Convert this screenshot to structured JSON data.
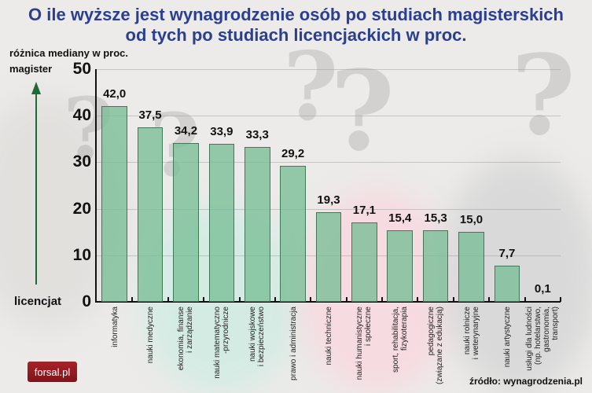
{
  "title_line1": "O ile wyższe jest wynagrodzenie osób po studiach magisterskich",
  "title_line2": "od tych po studiach licencjackich w proc.",
  "y_axis_label": "różnica mediany w proc.",
  "arrow_top_label": "magister",
  "arrow_bottom_label": "licencjat",
  "source": "źródło: wynagrodzenia.pl",
  "logo": "forsal.pl",
  "colors": {
    "title": "#2a3f8f",
    "bar_fill": "#78be96",
    "bar_border": "#3d7a55",
    "arrow": "#1f6b35",
    "logo": "#a8232a"
  },
  "chart_data": {
    "type": "bar",
    "title": "O ile wyższe jest wynagrodzenie osób po studiach magisterskich od tych po studiach licencjackich w proc.",
    "xlabel": "",
    "ylabel": "różnica mediany w proc.",
    "ylim": [
      0,
      50
    ],
    "yticks": [
      0,
      10,
      20,
      30,
      40,
      50
    ],
    "grid": true,
    "legend": "none",
    "categories": [
      "informatyka",
      "nauki medyczne",
      "ekonomia, finanse i zarządzanie",
      "nauki matematyczno-przyrodnicze",
      "nauki wojskowe i bezpieczeństwo",
      "prawo i administracja",
      "nauki techniczne",
      "nauki humanistyczne i społeczne",
      "sport, rehabilitacja, fizykoterapia",
      "pedagogiczne (związane z edukacją)",
      "nauki rolnicze i weterynaryjne",
      "nauki artystyczne",
      "usługi dla ludności (np. hotelarstwo, gastronomia, transport)"
    ],
    "values": [
      42.0,
      37.5,
      34.2,
      33.9,
      33.3,
      29.2,
      19.3,
      17.1,
      15.4,
      15.3,
      15.0,
      7.7,
      0.1
    ],
    "value_labels": [
      "42,0",
      "37,5",
      "34,2",
      "33,9",
      "33,3",
      "29,2",
      "19,3",
      "17,1",
      "15,4",
      "15,3",
      "15,0",
      "7,7",
      "0,1"
    ],
    "category_lines": [
      [
        "informatyka"
      ],
      [
        "nauki medyczne"
      ],
      [
        "ekonomia, finanse",
        "i zarządzanie"
      ],
      [
        "nauki matematyczno",
        "-przyrodnicze"
      ],
      [
        "nauki wojskowe",
        "i bezpieczeństwo"
      ],
      [
        "prawo i administracja"
      ],
      [
        "nauki techniczne"
      ],
      [
        "nauki humanistyczne",
        "i społeczne"
      ],
      [
        "sport, rehabilitacja,",
        "fizykoterapia"
      ],
      [
        "pedagogiczne",
        "(związane z edukacją)"
      ],
      [
        "nauki rolnicze",
        "i weterynaryjne"
      ],
      [
        "nauki artystyczne"
      ],
      [
        "usługi dla ludności",
        "(np. hotelarstwo,",
        "gastronomia,",
        "transport)"
      ]
    ]
  }
}
